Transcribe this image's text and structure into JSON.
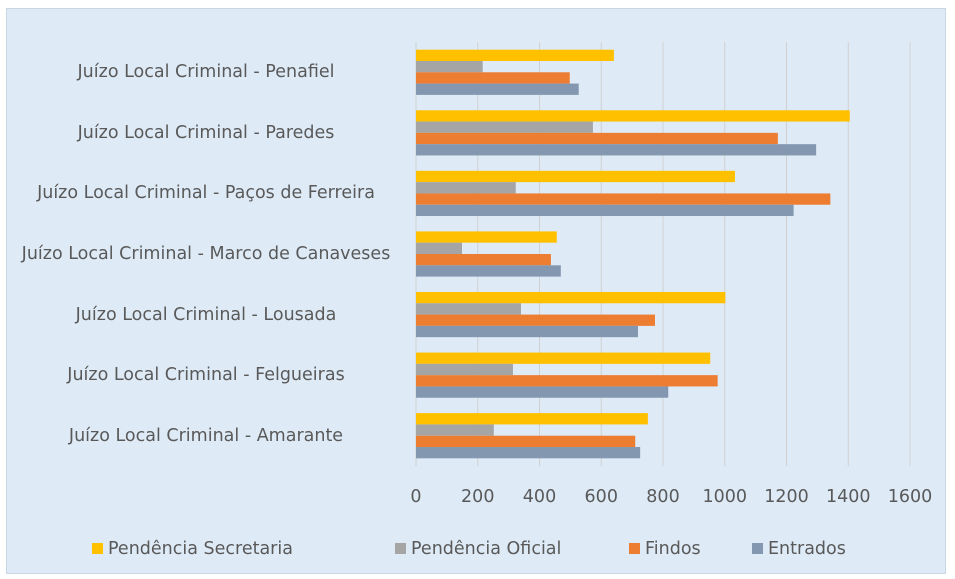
{
  "chart_data": {
    "type": "bar",
    "orientation": "horizontal",
    "categories": [
      "Juízo Local Criminal - Penafiel",
      "Juízo Local Criminal - Paredes",
      "Juízo Local Criminal - Paços de Ferreira",
      "Juízo Local Criminal - Marco de Canaveses",
      "Juízo Local Criminal - Lousada",
      "Juízo Local Criminal - Felgueiras",
      "Juízo Local Criminal - Amarante"
    ],
    "series": [
      {
        "name": "Pendência Secretaria",
        "color": "#ffc000",
        "values": [
          641,
          1405,
          1033,
          456,
          1002,
          953,
          751
        ]
      },
      {
        "name": "Pendência Oficial",
        "color": "#a5a5a5",
        "values": [
          216,
          573,
          323,
          149,
          340,
          314,
          252
        ]
      },
      {
        "name": "Findos",
        "color": "#ed7d31",
        "values": [
          498,
          1172,
          1342,
          437,
          774,
          977,
          710
        ]
      },
      {
        "name": "Entrados",
        "color": "#8497b0",
        "values": [
          527,
          1296,
          1223,
          469,
          719,
          817,
          726
        ]
      }
    ],
    "xlim": [
      0,
      1600
    ],
    "xticks": [
      0,
      200,
      400,
      600,
      800,
      1000,
      1200,
      1400,
      1600
    ],
    "grid": true,
    "legend": "bottom"
  }
}
